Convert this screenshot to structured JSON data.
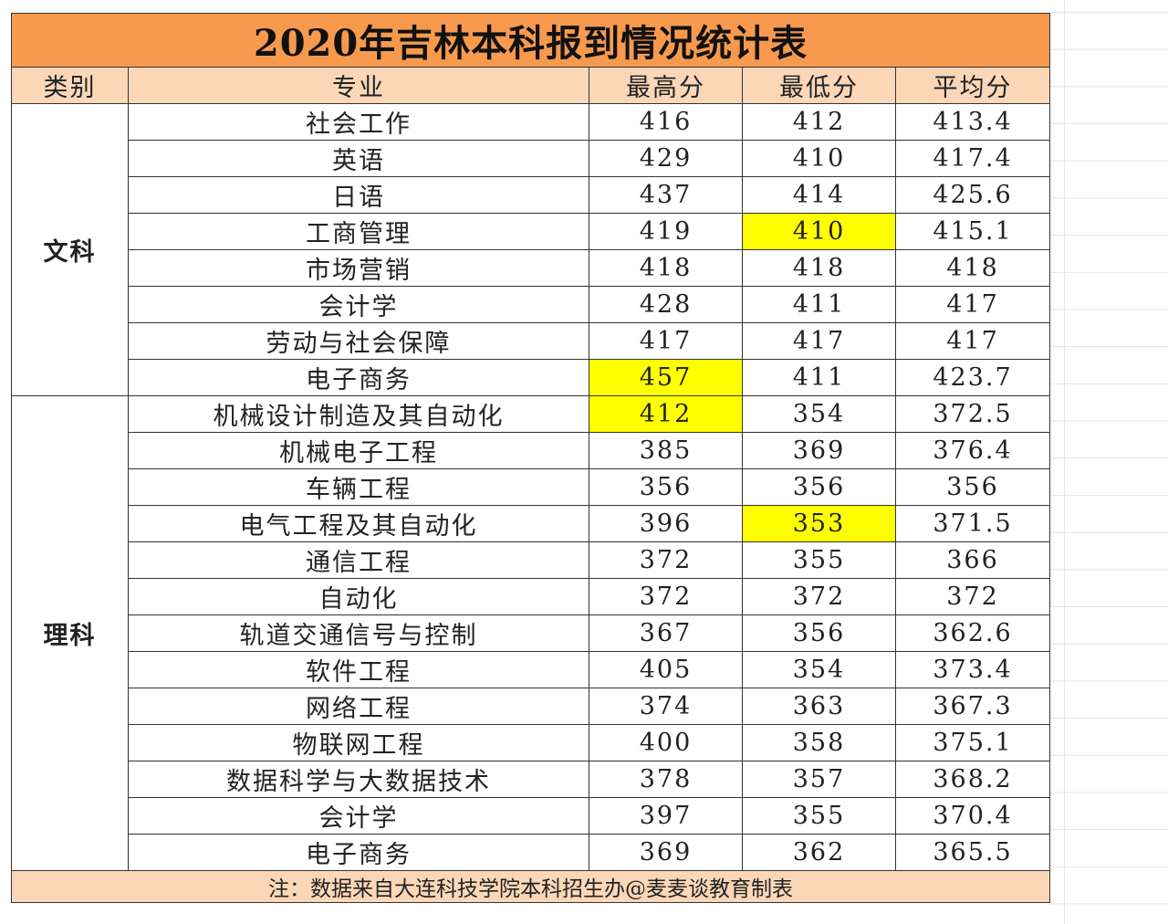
{
  "title": "2020年吉林本科报到情况统计表",
  "headers": [
    "类别",
    "专业",
    "最高分",
    "最低分",
    "平均分"
  ],
  "highlight_color": "#ffff00",
  "groups": [
    {
      "name": "文科",
      "rows": [
        {
          "major": "社会工作",
          "max": 416,
          "min": 412,
          "avg": 413.4
        },
        {
          "major": "英语",
          "max": 429,
          "min": 410,
          "avg": 417.4
        },
        {
          "major": "日语",
          "max": 437,
          "min": 414,
          "avg": 425.6
        },
        {
          "major": "工商管理",
          "max": 419,
          "min": 410,
          "avg": 415.1,
          "highlight": "min"
        },
        {
          "major": "市场营销",
          "max": 418,
          "min": 418,
          "avg": 418
        },
        {
          "major": "会计学",
          "max": 428,
          "min": 411,
          "avg": 417
        },
        {
          "major": "劳动与社会保障",
          "max": 417,
          "min": 417,
          "avg": 417
        },
        {
          "major": "电子商务",
          "max": 457,
          "min": 411,
          "avg": 423.7,
          "highlight": "max"
        }
      ]
    },
    {
      "name": "理科",
      "rows": [
        {
          "major": "机械设计制造及其自动化",
          "max": 412,
          "min": 354,
          "avg": 372.5,
          "highlight": "max"
        },
        {
          "major": "机械电子工程",
          "max": 385,
          "min": 369,
          "avg": 376.4
        },
        {
          "major": "车辆工程",
          "max": 356,
          "min": 356,
          "avg": 356
        },
        {
          "major": "电气工程及其自动化",
          "max": 396,
          "min": 353,
          "avg": 371.5,
          "highlight": "min"
        },
        {
          "major": "通信工程",
          "max": 372,
          "min": 355,
          "avg": 366
        },
        {
          "major": "自动化",
          "max": 372,
          "min": 372,
          "avg": 372
        },
        {
          "major": "轨道交通信号与控制",
          "max": 367,
          "min": 356,
          "avg": 362.6
        },
        {
          "major": "软件工程",
          "max": 405,
          "min": 354,
          "avg": 373.4
        },
        {
          "major": "网络工程",
          "max": 374,
          "min": 363,
          "avg": 367.3
        },
        {
          "major": "物联网工程",
          "max": 400,
          "min": 358,
          "avg": 375.1
        },
        {
          "major": "数据科学与大数据技术",
          "max": 378,
          "min": 357,
          "avg": 368.2
        },
        {
          "major": "会计学",
          "max": 397,
          "min": 355,
          "avg": 370.4
        },
        {
          "major": "电子商务",
          "max": 369,
          "min": 362,
          "avg": 365.5
        }
      ]
    }
  ],
  "footer": "注：数据来自大连科技学院本科招生办@麦麦谈教育制表"
}
